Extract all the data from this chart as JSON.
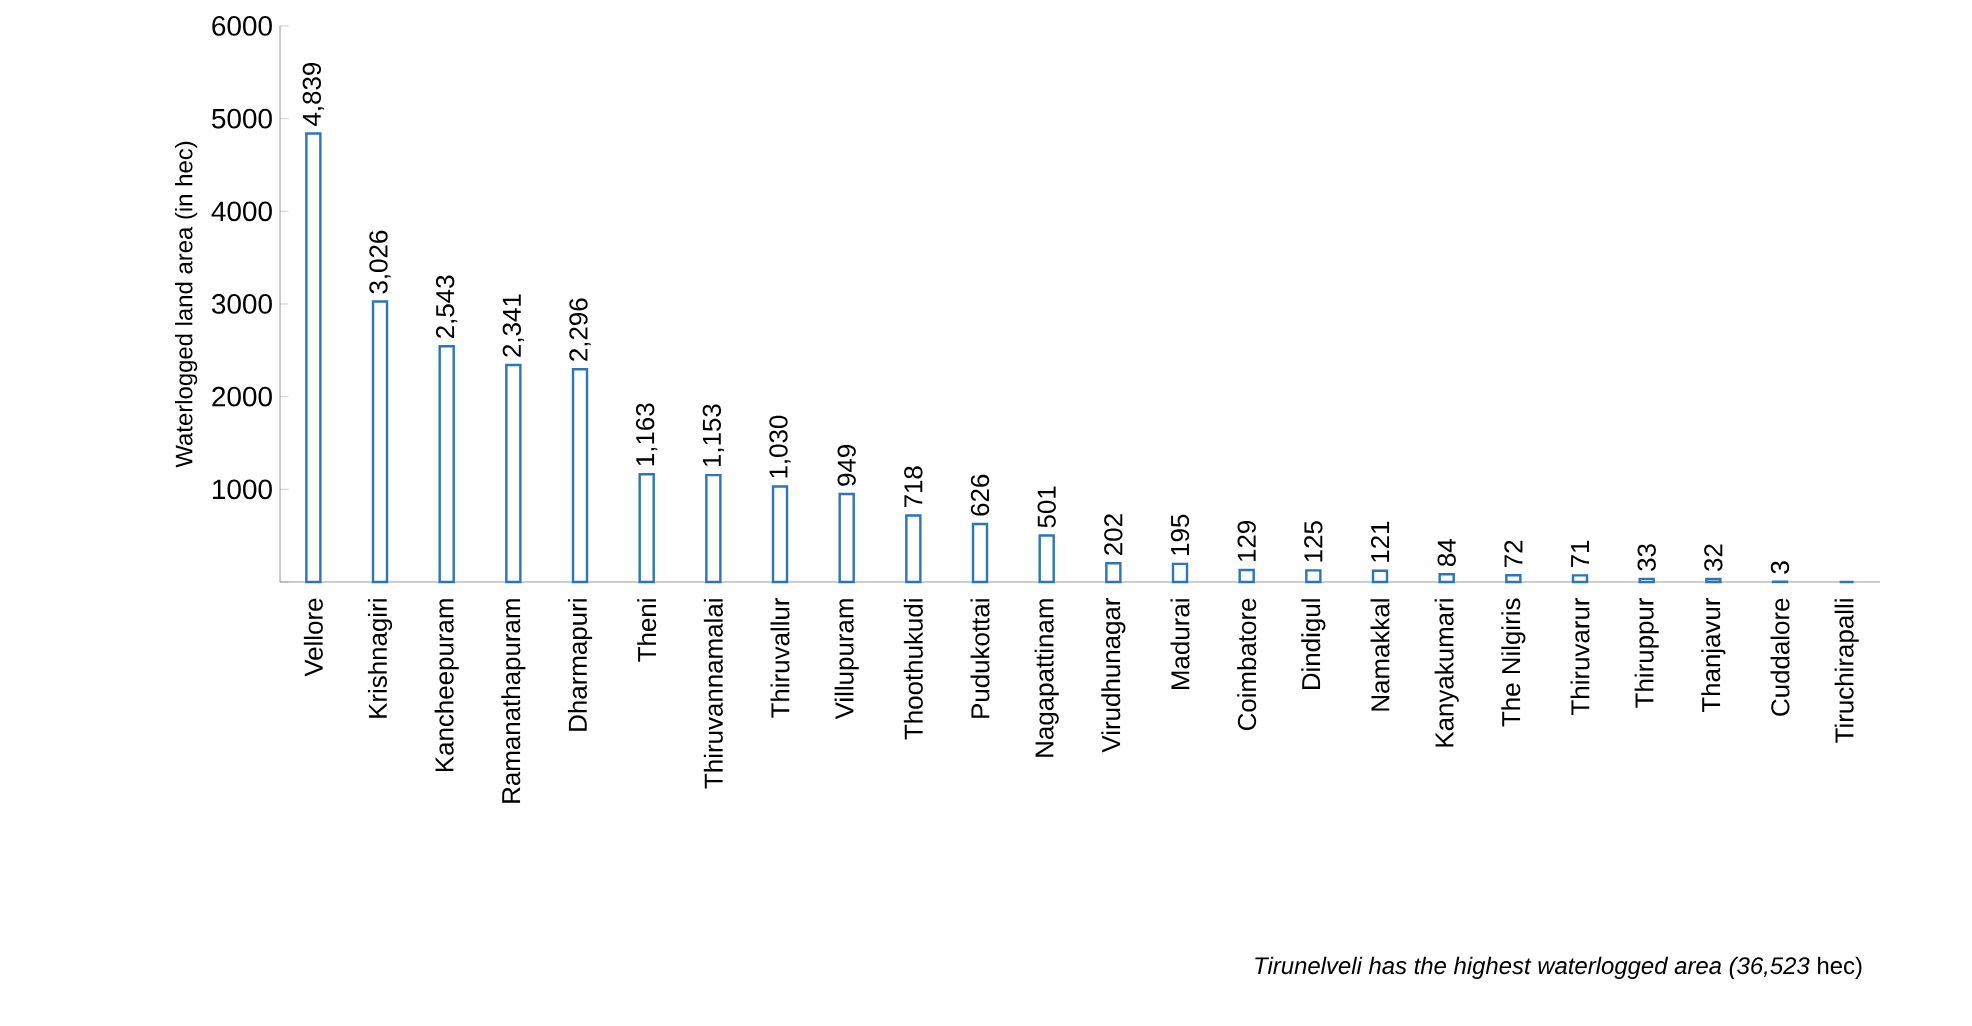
{
  "chart_data": {
    "type": "bar",
    "ylabel": "Waterlogged land area (in hec)",
    "categories": [
      "Vellore",
      "Krishnagiri",
      "Kancheepuram",
      "Ramanathapuram",
      "Dharmapuri",
      "Theni",
      "Thiruvannamalai",
      "Thiruvallur",
      "Villupuram",
      "Thoothukudi",
      "Pudukottai",
      "Nagapattinam",
      "Virudhunagar",
      "Madurai",
      "Coimbatore",
      "Dindigul",
      "Namakkal",
      "Kanyakumari",
      "The Nilgiris",
      "Thiruvarur",
      "Thiruppur",
      "Thanjavur",
      "Cuddalore",
      "Tiruchirapalli"
    ],
    "values": [
      4839,
      3026,
      2543,
      2341,
      2296,
      1163,
      1153,
      1030,
      949,
      718,
      626,
      501,
      202,
      195,
      129,
      125,
      121,
      84,
      72,
      71,
      33,
      32,
      3,
      0
    ],
    "value_labels": [
      "4,839",
      "3,026",
      "2,543",
      "2,341",
      "2,296",
      "1,163",
      "1,153",
      "1,030",
      "949",
      "718",
      "626",
      "501",
      "202",
      "195",
      "129",
      "125",
      "121",
      "84",
      "72",
      "71",
      "33",
      "32",
      "3",
      null
    ],
    "color": "#2e75b6",
    "ylim": [
      0,
      6000
    ],
    "yticks": [
      {
        "value": 0,
        "label": null
      },
      1000,
      2000,
      3000,
      4000,
      5000,
      6000
    ],
    "grid": false,
    "annotations": [
      "*Tirunelveli has the highest waterlogged area (36,523* hec)"
    ]
  }
}
